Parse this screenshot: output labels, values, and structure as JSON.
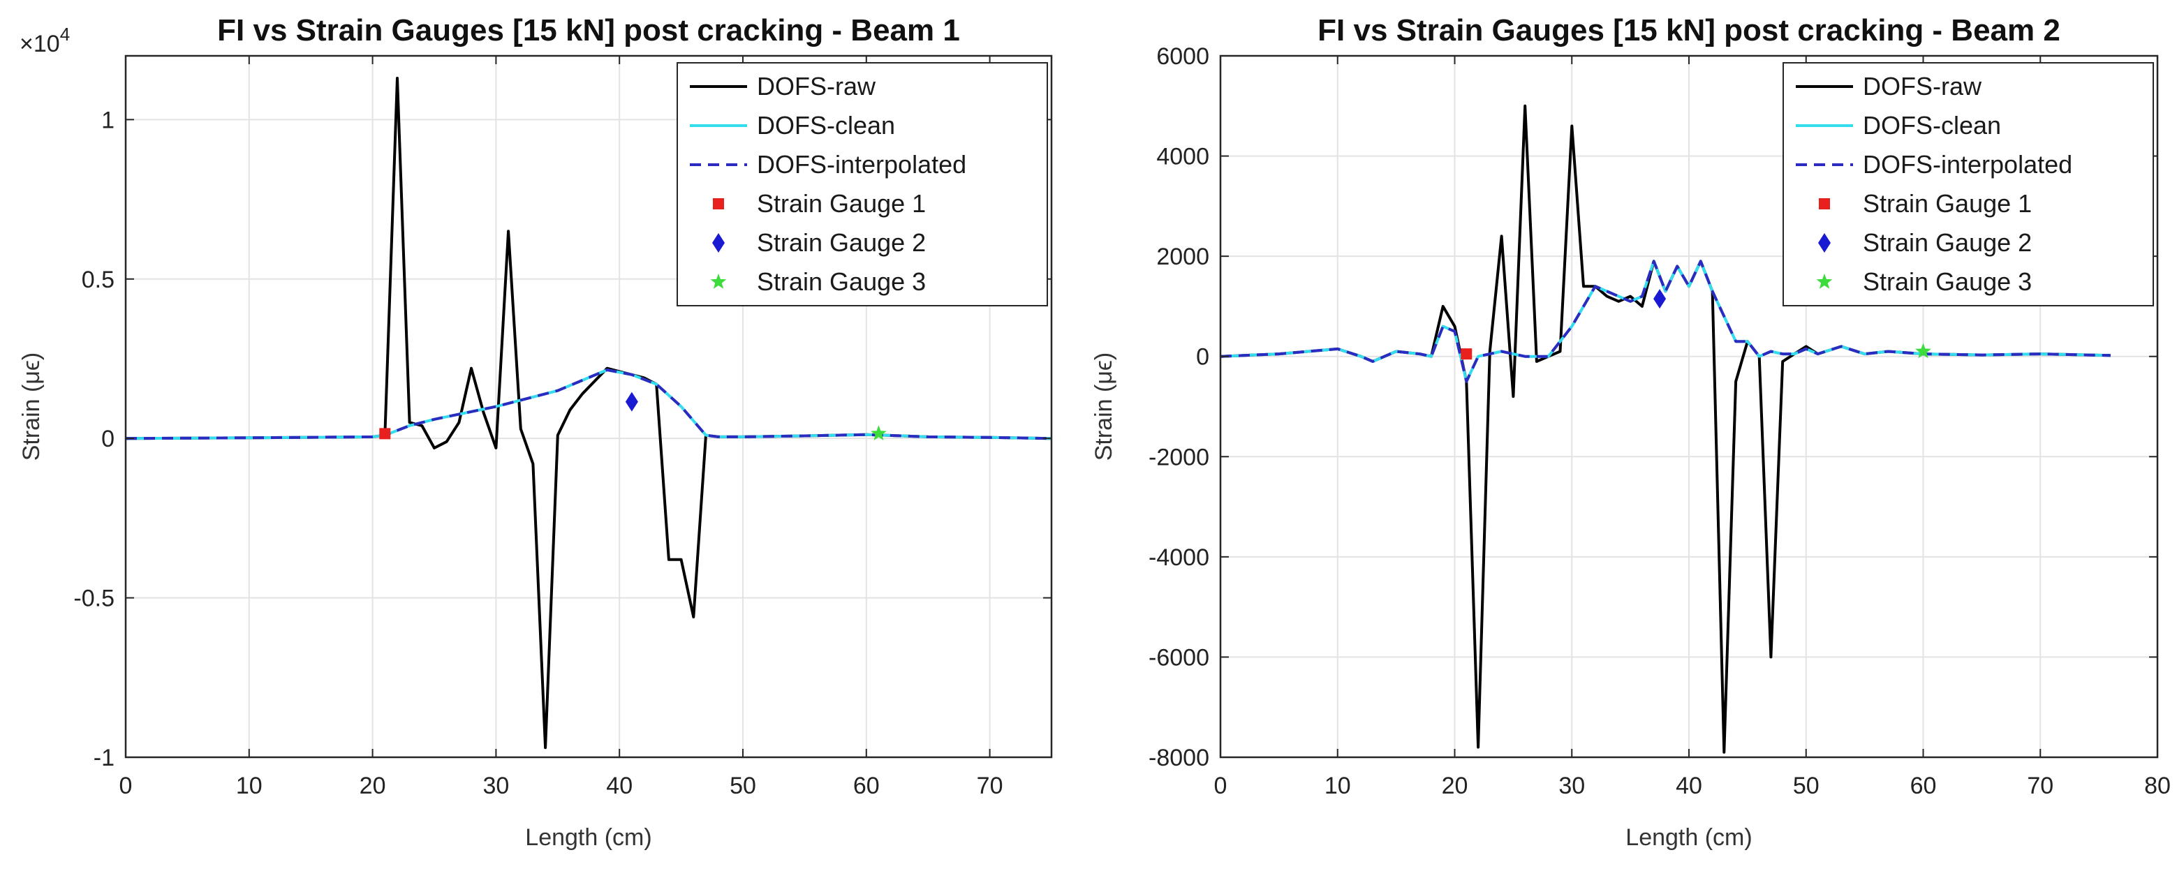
{
  "chart_data": [
    {
      "type": "line",
      "title": "FI vs Strain Gauges [15 kN] post cracking - Beam 1",
      "xlabel": "Length (cm)",
      "ylabel": "Strain (μϵ)",
      "exponent_label": "×10",
      "exponent_power": "4",
      "xlim": [
        0,
        75
      ],
      "ylim": [
        -10000,
        12000
      ],
      "xticks": [
        0,
        10,
        20,
        30,
        40,
        50,
        60,
        70
      ],
      "xtick_labels": [
        "0",
        "10",
        "20",
        "30",
        "40",
        "50",
        "60",
        "70"
      ],
      "yticks": [
        -10000,
        -5000,
        0,
        5000,
        10000
      ],
      "ytick_labels": [
        "-1",
        "-0.5",
        "0",
        "0.5",
        "1"
      ],
      "grid": true,
      "legend_position": "top-right",
      "series": [
        {
          "name": "DOFS-raw",
          "color": "#000000",
          "style": "solid",
          "x": [
            0,
            10,
            20,
            21,
            22,
            23,
            24,
            25,
            26,
            27,
            28,
            29,
            30,
            31,
            32,
            33,
            34,
            35,
            36,
            37,
            38,
            39,
            40,
            41,
            42,
            43,
            44,
            45,
            46,
            47,
            48,
            50,
            55,
            60,
            65,
            70,
            75
          ],
          "y": [
            0,
            20,
            50,
            100,
            11300,
            500,
            400,
            -300,
            -100,
            500,
            2200,
            800,
            -300,
            6500,
            300,
            -800,
            -9700,
            100,
            900,
            1400,
            1800,
            2200,
            2100,
            2000,
            1900,
            1700,
            -3800,
            -3800,
            -5600,
            100,
            50,
            50,
            80,
            120,
            50,
            30,
            0
          ]
        },
        {
          "name": "DOFS-clean",
          "color": "#33dded",
          "style": "solid",
          "x": [
            0,
            10,
            20,
            21,
            23,
            25,
            30,
            35,
            39,
            41,
            43,
            45,
            47,
            48,
            50,
            55,
            60,
            65,
            70,
            75
          ],
          "y": [
            0,
            20,
            50,
            100,
            400,
            600,
            1000,
            1500,
            2150,
            2000,
            1700,
            1000,
            100,
            50,
            50,
            80,
            120,
            50,
            30,
            0
          ]
        },
        {
          "name": "DOFS-interpolated",
          "color": "#2b2bc0",
          "style": "dashed",
          "x": [
            0,
            10,
            20,
            21,
            23,
            25,
            30,
            35,
            39,
            41,
            43,
            45,
            47,
            48,
            50,
            55,
            60,
            65,
            70,
            75
          ],
          "y": [
            0,
            20,
            50,
            100,
            400,
            600,
            1000,
            1500,
            2150,
            2000,
            1700,
            1000,
            100,
            50,
            50,
            80,
            120,
            50,
            30,
            0
          ]
        },
        {
          "name": "Strain Gauge 1",
          "color": "#e8201e",
          "marker": "square",
          "x": [
            21
          ],
          "y": [
            150
          ]
        },
        {
          "name": "Strain Gauge 2",
          "color": "#1a1ad2",
          "marker": "diamond",
          "x": [
            41
          ],
          "y": [
            1150
          ]
        },
        {
          "name": "Strain Gauge 3",
          "color": "#3bdc3b",
          "marker": "star",
          "x": [
            61
          ],
          "y": [
            150
          ]
        }
      ]
    },
    {
      "type": "line",
      "title": "FI vs Strain Gauges [15 kN] post cracking - Beam 2",
      "xlabel": "Length (cm)",
      "ylabel": "Strain (μϵ)",
      "xlim": [
        0,
        80
      ],
      "ylim": [
        -8000,
        6000
      ],
      "xticks": [
        0,
        10,
        20,
        30,
        40,
        50,
        60,
        70,
        80
      ],
      "xtick_labels": [
        "0",
        "10",
        "20",
        "30",
        "40",
        "50",
        "60",
        "70",
        "80"
      ],
      "yticks": [
        -8000,
        -6000,
        -4000,
        -2000,
        0,
        2000,
        4000,
        6000
      ],
      "ytick_labels": [
        "-8000",
        "-6000",
        "-4000",
        "-2000",
        "0",
        "2000",
        "4000",
        "6000"
      ],
      "grid": true,
      "legend_position": "top-right",
      "series": [
        {
          "name": "DOFS-raw",
          "color": "#000000",
          "style": "solid",
          "x": [
            0,
            5,
            10,
            12,
            13,
            15,
            17,
            18,
            19,
            20,
            21,
            22,
            23,
            24,
            25,
            26,
            27,
            28,
            29,
            30,
            31,
            32,
            33,
            34,
            35,
            36,
            37,
            38,
            39,
            40,
            41,
            42,
            43,
            44,
            45,
            46,
            47,
            48,
            49,
            50,
            51,
            53,
            55,
            57,
            60,
            65,
            70,
            76
          ],
          "y": [
            0,
            50,
            150,
            0,
            -100,
            100,
            50,
            0,
            1000,
            600,
            -500,
            -7800,
            100,
            2400,
            -800,
            5000,
            -100,
            0,
            100,
            4600,
            1400,
            1400,
            1200,
            1100,
            1200,
            1000,
            1900,
            1300,
            1800,
            1400,
            1900,
            1300,
            -7900,
            -500,
            300,
            0,
            -6000,
            -100,
            50,
            200,
            50,
            200,
            50,
            100,
            50,
            30,
            50,
            20
          ]
        },
        {
          "name": "DOFS-clean",
          "color": "#33dded",
          "style": "solid",
          "x": [
            0,
            5,
            10,
            12,
            13,
            15,
            17,
            18,
            19,
            20,
            21,
            22,
            24,
            26,
            28,
            30,
            32,
            34,
            35,
            36,
            37,
            38,
            39,
            40,
            41,
            42,
            44,
            45,
            46,
            47,
            48,
            49,
            50,
            51,
            53,
            55,
            57,
            60,
            65,
            70,
            76
          ],
          "y": [
            0,
            50,
            150,
            0,
            -100,
            100,
            50,
            0,
            600,
            500,
            -500,
            0,
            100,
            0,
            0,
            600,
            1400,
            1200,
            1100,
            1200,
            1900,
            1300,
            1800,
            1400,
            1900,
            1300,
            300,
            300,
            0,
            100,
            50,
            50,
            150,
            50,
            200,
            50,
            100,
            50,
            30,
            50,
            20
          ]
        },
        {
          "name": "DOFS-interpolated",
          "color": "#2b2bc0",
          "style": "dashed",
          "x": [
            0,
            5,
            10,
            12,
            13,
            15,
            17,
            18,
            19,
            20,
            21,
            22,
            24,
            26,
            28,
            30,
            32,
            34,
            35,
            36,
            37,
            38,
            39,
            40,
            41,
            42,
            44,
            45,
            46,
            47,
            48,
            49,
            50,
            51,
            53,
            55,
            57,
            60,
            65,
            70,
            76
          ],
          "y": [
            0,
            50,
            150,
            0,
            -100,
            100,
            50,
            0,
            600,
            500,
            -500,
            0,
            100,
            0,
            0,
            600,
            1400,
            1200,
            1100,
            1200,
            1900,
            1300,
            1800,
            1400,
            1900,
            1300,
            300,
            300,
            0,
            100,
            50,
            50,
            150,
            50,
            200,
            50,
            100,
            50,
            30,
            50,
            20
          ]
        },
        {
          "name": "Strain Gauge 1",
          "color": "#e8201e",
          "marker": "square",
          "x": [
            21
          ],
          "y": [
            50
          ]
        },
        {
          "name": "Strain Gauge 2",
          "color": "#1a1ad2",
          "marker": "diamond",
          "x": [
            37.5
          ],
          "y": [
            1150
          ]
        },
        {
          "name": "Strain Gauge 3",
          "color": "#3bdc3b",
          "marker": "star",
          "x": [
            60
          ],
          "y": [
            100
          ]
        }
      ]
    }
  ]
}
